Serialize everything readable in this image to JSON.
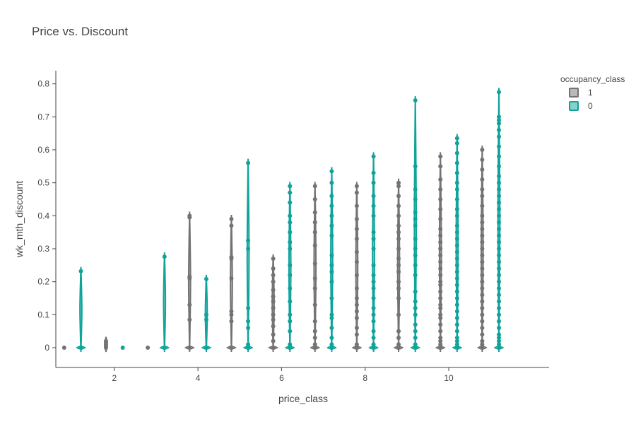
{
  "chart_data": {
    "type": "violin",
    "title": "Price vs. Discount",
    "xlabel": "price_class",
    "ylabel": "wk_mth_discount",
    "xlim": [
      0.6,
      12.4
    ],
    "ylim": [
      -0.06,
      0.84
    ],
    "x_ticks": [
      2,
      4,
      6,
      8,
      10
    ],
    "y_ticks": [
      0,
      0.1,
      0.2,
      0.3,
      0.4,
      0.5,
      0.6,
      0.7,
      0.8
    ],
    "legend": {
      "title": "occupancy_class",
      "placement": "top-right"
    },
    "series": [
      {
        "name": "1",
        "color": "#737373",
        "groups": [
          {
            "x": 1,
            "points": [
              0
            ]
          },
          {
            "x": 2,
            "points": [
              0,
              0.005,
              0.01,
              0.015,
              0.02
            ]
          },
          {
            "x": 3,
            "points": [
              0
            ]
          },
          {
            "x": 4,
            "points": [
              0,
              0.085,
              0.13,
              0.21,
              0.215,
              0.395,
              0.4
            ]
          },
          {
            "x": 5,
            "points": [
              0,
              0.08,
              0.1,
              0.11,
              0.21,
              0.27,
              0.275,
              0.37,
              0.39
            ]
          },
          {
            "x": 6,
            "points": [
              0,
              0.02,
              0.04,
              0.065,
              0.085,
              0.1,
              0.12,
              0.14,
              0.155,
              0.175,
              0.2,
              0.22,
              0.24,
              0.27
            ]
          },
          {
            "x": 7,
            "points": [
              0,
              0.01,
              0.03,
              0.05,
              0.08,
              0.13,
              0.18,
              0.21,
              0.255,
              0.31,
              0.35,
              0.38,
              0.41,
              0.45,
              0.49
            ]
          },
          {
            "x": 8,
            "points": [
              0,
              0.01,
              0.04,
              0.06,
              0.09,
              0.11,
              0.13,
              0.15,
              0.18,
              0.22,
              0.26,
              0.29,
              0.33,
              0.36,
              0.39,
              0.43,
              0.47,
              0.49
            ]
          },
          {
            "x": 9,
            "points": [
              0,
              0.01,
              0.03,
              0.05,
              0.1,
              0.15,
              0.18,
              0.2,
              0.23,
              0.25,
              0.27,
              0.3,
              0.33,
              0.35,
              0.37,
              0.4,
              0.43,
              0.46,
              0.49,
              0.5
            ]
          },
          {
            "x": 10,
            "points": [
              0,
              0.01,
              0.02,
              0.03,
              0.05,
              0.07,
              0.09,
              0.1,
              0.12,
              0.13,
              0.15,
              0.17,
              0.19,
              0.2,
              0.22,
              0.24,
              0.26,
              0.28,
              0.3,
              0.32,
              0.34,
              0.36,
              0.39,
              0.42,
              0.45,
              0.48,
              0.51,
              0.55,
              0.58
            ]
          },
          {
            "x": 11,
            "points": [
              0,
              0.01,
              0.02,
              0.04,
              0.06,
              0.08,
              0.1,
              0.12,
              0.14,
              0.16,
              0.18,
              0.2,
              0.22,
              0.24,
              0.26,
              0.28,
              0.3,
              0.32,
              0.34,
              0.36,
              0.38,
              0.4,
              0.43,
              0.46,
              0.48,
              0.51,
              0.54,
              0.57,
              0.6
            ]
          }
        ]
      },
      {
        "name": "0",
        "color": "#0fa39a",
        "groups": [
          {
            "x": 1,
            "points": [
              0,
              0.232
            ]
          },
          {
            "x": 2,
            "points": [
              0
            ]
          },
          {
            "x": 3,
            "points": [
              0,
              0.276
            ]
          },
          {
            "x": 4,
            "points": [
              0,
              0.085,
              0.1,
              0.208
            ]
          },
          {
            "x": 5,
            "points": [
              0,
              0.01,
              0.06,
              0.08,
              0.12,
              0.3,
              0.325,
              0.56
            ]
          },
          {
            "x": 6,
            "points": [
              0,
              0.01,
              0.05,
              0.08,
              0.1,
              0.14,
              0.18,
              0.22,
              0.25,
              0.3,
              0.32,
              0.35,
              0.38,
              0.4,
              0.44,
              0.47,
              0.49
            ]
          },
          {
            "x": 7,
            "points": [
              0,
              0.01,
              0.03,
              0.06,
              0.09,
              0.1,
              0.15,
              0.2,
              0.23,
              0.25,
              0.28,
              0.34,
              0.37,
              0.4,
              0.43,
              0.46,
              0.5,
              0.535
            ]
          },
          {
            "x": 8,
            "points": [
              0,
              0.01,
              0.03,
              0.05,
              0.08,
              0.1,
              0.12,
              0.15,
              0.18,
              0.2,
              0.22,
              0.25,
              0.3,
              0.33,
              0.35,
              0.4,
              0.43,
              0.46,
              0.5,
              0.53,
              0.58
            ]
          },
          {
            "x": 9,
            "points": [
              0,
              0.01,
              0.03,
              0.05,
              0.07,
              0.1,
              0.12,
              0.14,
              0.17,
              0.22,
              0.25,
              0.28,
              0.3,
              0.33,
              0.37,
              0.39,
              0.41,
              0.45,
              0.48,
              0.55,
              0.75
            ]
          },
          {
            "x": 10,
            "points": [
              0,
              0.01,
              0.02,
              0.03,
              0.05,
              0.07,
              0.09,
              0.11,
              0.13,
              0.15,
              0.17,
              0.19,
              0.21,
              0.23,
              0.25,
              0.27,
              0.29,
              0.31,
              0.33,
              0.35,
              0.37,
              0.4,
              0.42,
              0.45,
              0.48,
              0.5,
              0.53,
              0.56,
              0.59,
              0.62,
              0.635
            ]
          },
          {
            "x": 11,
            "points": [
              0,
              0.01,
              0.02,
              0.03,
              0.04,
              0.06,
              0.08,
              0.1,
              0.12,
              0.14,
              0.16,
              0.18,
              0.2,
              0.22,
              0.24,
              0.26,
              0.28,
              0.3,
              0.32,
              0.34,
              0.36,
              0.38,
              0.4,
              0.42,
              0.44,
              0.46,
              0.48,
              0.5,
              0.52,
              0.55,
              0.58,
              0.61,
              0.64,
              0.66,
              0.68,
              0.69,
              0.7,
              0.775
            ]
          }
        ]
      }
    ]
  }
}
